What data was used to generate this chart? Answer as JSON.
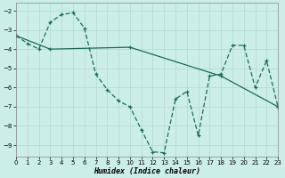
{
  "xlabel": "Humidex (Indice chaleur)",
  "background_color": "#cbeee8",
  "grid_color": "#b5ddd4",
  "line_color": "#1a6b5a",
  "xlim": [
    0,
    23
  ],
  "ylim": [
    -9.6,
    -1.6
  ],
  "yticks": [
    -9,
    -8,
    -7,
    -6,
    -5,
    -4,
    -3,
    -2
  ],
  "xticks": [
    0,
    1,
    2,
    3,
    4,
    5,
    6,
    7,
    8,
    9,
    10,
    11,
    12,
    13,
    14,
    15,
    16,
    17,
    18,
    19,
    20,
    21,
    22,
    23
  ],
  "zigzag_x": [
    0,
    1,
    2,
    3,
    4,
    5,
    6,
    7,
    8,
    9,
    10,
    11,
    12,
    13,
    14,
    15,
    16,
    17,
    18,
    19,
    20,
    21,
    22,
    23
  ],
  "zigzag_y": [
    -3.3,
    -3.7,
    -4.0,
    -2.6,
    -2.2,
    -2.1,
    -2.9,
    -5.3,
    -6.1,
    -6.7,
    -7.0,
    -8.2,
    -9.35,
    -9.4,
    -6.6,
    -6.2,
    -8.5,
    -5.4,
    -5.3,
    -3.8,
    -3.8,
    -6.0,
    -4.6,
    -7.0
  ],
  "diagonal_x": [
    0,
    3,
    10,
    18,
    23
  ],
  "diagonal_y": [
    -3.3,
    -4.0,
    -3.9,
    -5.4,
    -7.0
  ],
  "xlabel_fontsize": 6.0,
  "tick_fontsize": 5.0
}
